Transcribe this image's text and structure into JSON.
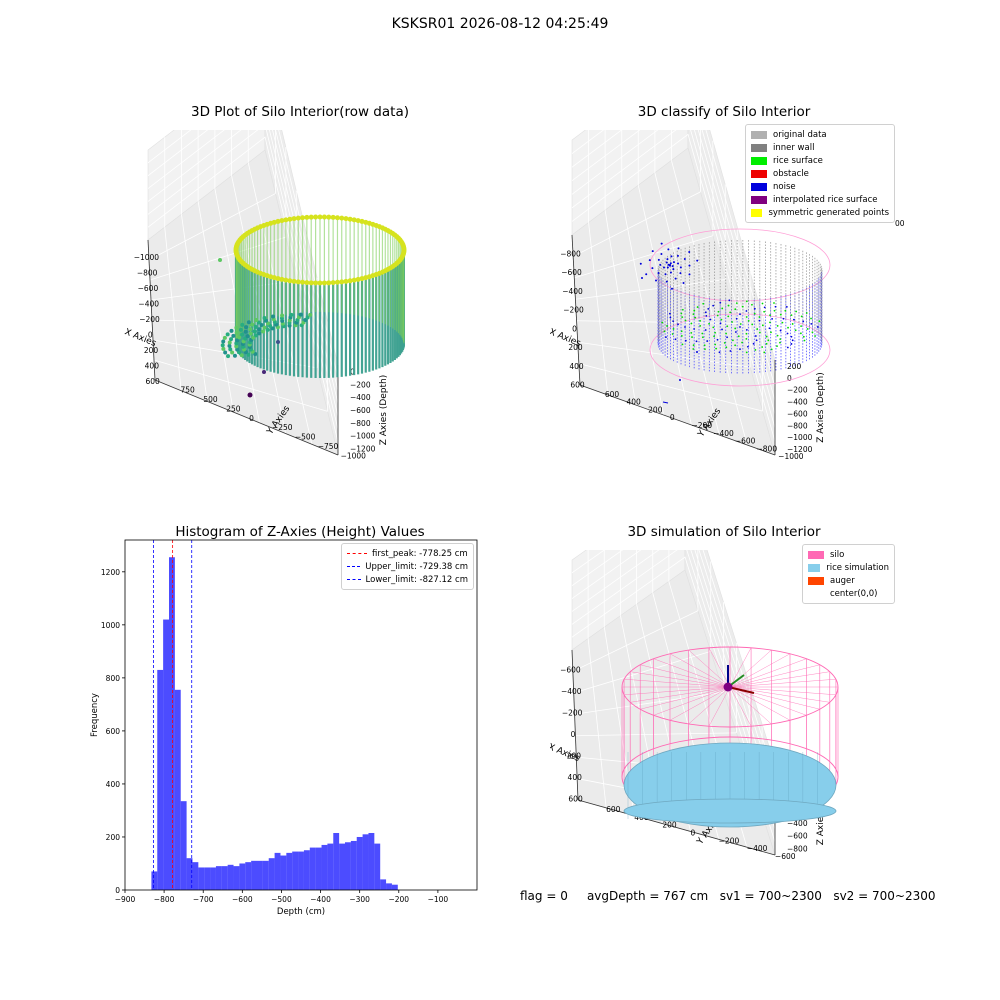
{
  "suptitle": "KSKSR01 2026-08-12 04:25:49",
  "panel_raw": {
    "title": "3D Plot of Silo Interior(row data)",
    "xlabel": "X Axies",
    "ylabel": "Y Axies",
    "zlabel": "Z Axies (Depth)",
    "xticks": [
      "−1000",
      "−800",
      "−600",
      "−400",
      "−200",
      "0",
      "200",
      "400",
      "600"
    ],
    "yticks": [
      "750",
      "500",
      "250",
      "0",
      "−250",
      "−500",
      "−750",
      "−1000"
    ],
    "zticks": [
      "0",
      "−200",
      "−400",
      "−600",
      "−800",
      "−1000",
      "−1200"
    ],
    "colormap": "viridis"
  },
  "panel_classify": {
    "title": "3D classify of Silo Interior",
    "xlabel": "X Axies",
    "ylabel": "Y Axies",
    "zlabel": "Z Axies (Depth)",
    "xticks": [
      "−800",
      "−600",
      "−400",
      "−200",
      "0",
      "200",
      "400",
      "600"
    ],
    "yticks": [
      "600",
      "400",
      "200",
      "0",
      "−200",
      "−400",
      "−600",
      "−800",
      "−1000"
    ],
    "zticks": [
      "200",
      "0",
      "−200",
      "−400",
      "−600",
      "−800",
      "−1000",
      "−1200"
    ],
    "zticks_partial": "00",
    "legend": [
      {
        "label": "original data",
        "color": "#b0b0b0"
      },
      {
        "label": "inner wall",
        "color": "#808080"
      },
      {
        "label": "rice surface",
        "color": "#00ee00"
      },
      {
        "label": "obstacle",
        "color": "#ee0000"
      },
      {
        "label": "noise",
        "color": "#0000dd"
      },
      {
        "label": "interpolated rice surface",
        "color": "#800080"
      },
      {
        "label": "symmetric generated points",
        "color": "#ffff00"
      }
    ]
  },
  "panel_sim": {
    "title": "3D simulation of Silo Interior",
    "xlabel": "X Axies",
    "ylabel": "Y Axies",
    "zlabel": "Z Axies (Depth)",
    "xticks": [
      "−600",
      "−400",
      "−200",
      "0",
      "200",
      "400",
      "600"
    ],
    "yticks": [
      "600",
      "400",
      "200",
      "0",
      "−200",
      "−400",
      "−600"
    ],
    "zticks": [
      "400",
      "200",
      "0",
      "−200",
      "−400",
      "−600",
      "−800"
    ],
    "legend": [
      {
        "label": "silo",
        "color": "#ff69b4"
      },
      {
        "label": "rice simulation",
        "color": "#87ceeb"
      },
      {
        "label": "auger",
        "color": "#ff4500"
      },
      {
        "label": "center(0,0)",
        "color": "#ffffff"
      }
    ]
  },
  "stats": {
    "flag": "flag = 0",
    "avg": "avgDepth = 767 cm",
    "sv1": "sv1 = 700~2300",
    "sv2": "sv2 = 700~2300"
  },
  "chart_data": {
    "type": "bar",
    "title": "Histogram of Z-Axies (Height) Values",
    "xlabel": "Depth (cm)",
    "ylabel": "Frequency",
    "xlim": [
      -900,
      0
    ],
    "ylim": [
      0,
      1320
    ],
    "xticks": [
      -900,
      -800,
      -700,
      -600,
      -500,
      -400,
      -300,
      -200,
      -100
    ],
    "yticks": [
      0,
      200,
      400,
      600,
      800,
      1000,
      1200
    ],
    "bar_color": "#0000ff",
    "bin_start": -832.5,
    "bin_width": 15,
    "values": [
      70,
      830,
      1020,
      1255,
      755,
      335,
      120,
      105,
      85,
      85,
      85,
      90,
      90,
      95,
      90,
      100,
      105,
      110,
      110,
      110,
      120,
      140,
      130,
      140,
      145,
      145,
      150,
      160,
      160,
      170,
      175,
      215,
      175,
      180,
      185,
      200,
      210,
      215,
      175,
      40,
      25,
      20
    ],
    "vlines": [
      {
        "x": -778.25,
        "label": "first_peak: -778.25 cm",
        "color": "#ff0000"
      },
      {
        "x": -729.38,
        "label": "Upper_limit: -729.38 cm",
        "color": "#0000ff"
      },
      {
        "x": -827.12,
        "label": "Lower_limit: -827.12 cm",
        "color": "#0000ff"
      }
    ]
  }
}
